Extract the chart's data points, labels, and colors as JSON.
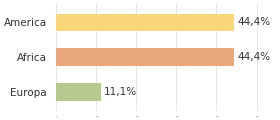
{
  "categories": [
    "Europa",
    "Africa",
    "America"
  ],
  "values": [
    11.1,
    44.4,
    44.4
  ],
  "bar_colors": [
    "#b5c98e",
    "#e8a87c",
    "#f9d67a"
  ],
  "labels": [
    "11,1%",
    "44,4%",
    "44,4%"
  ],
  "xlim": [
    0,
    55
  ],
  "background_color": "#ffffff",
  "bar_height": 0.52,
  "label_fontsize": 7.5,
  "tick_fontsize": 7.5
}
